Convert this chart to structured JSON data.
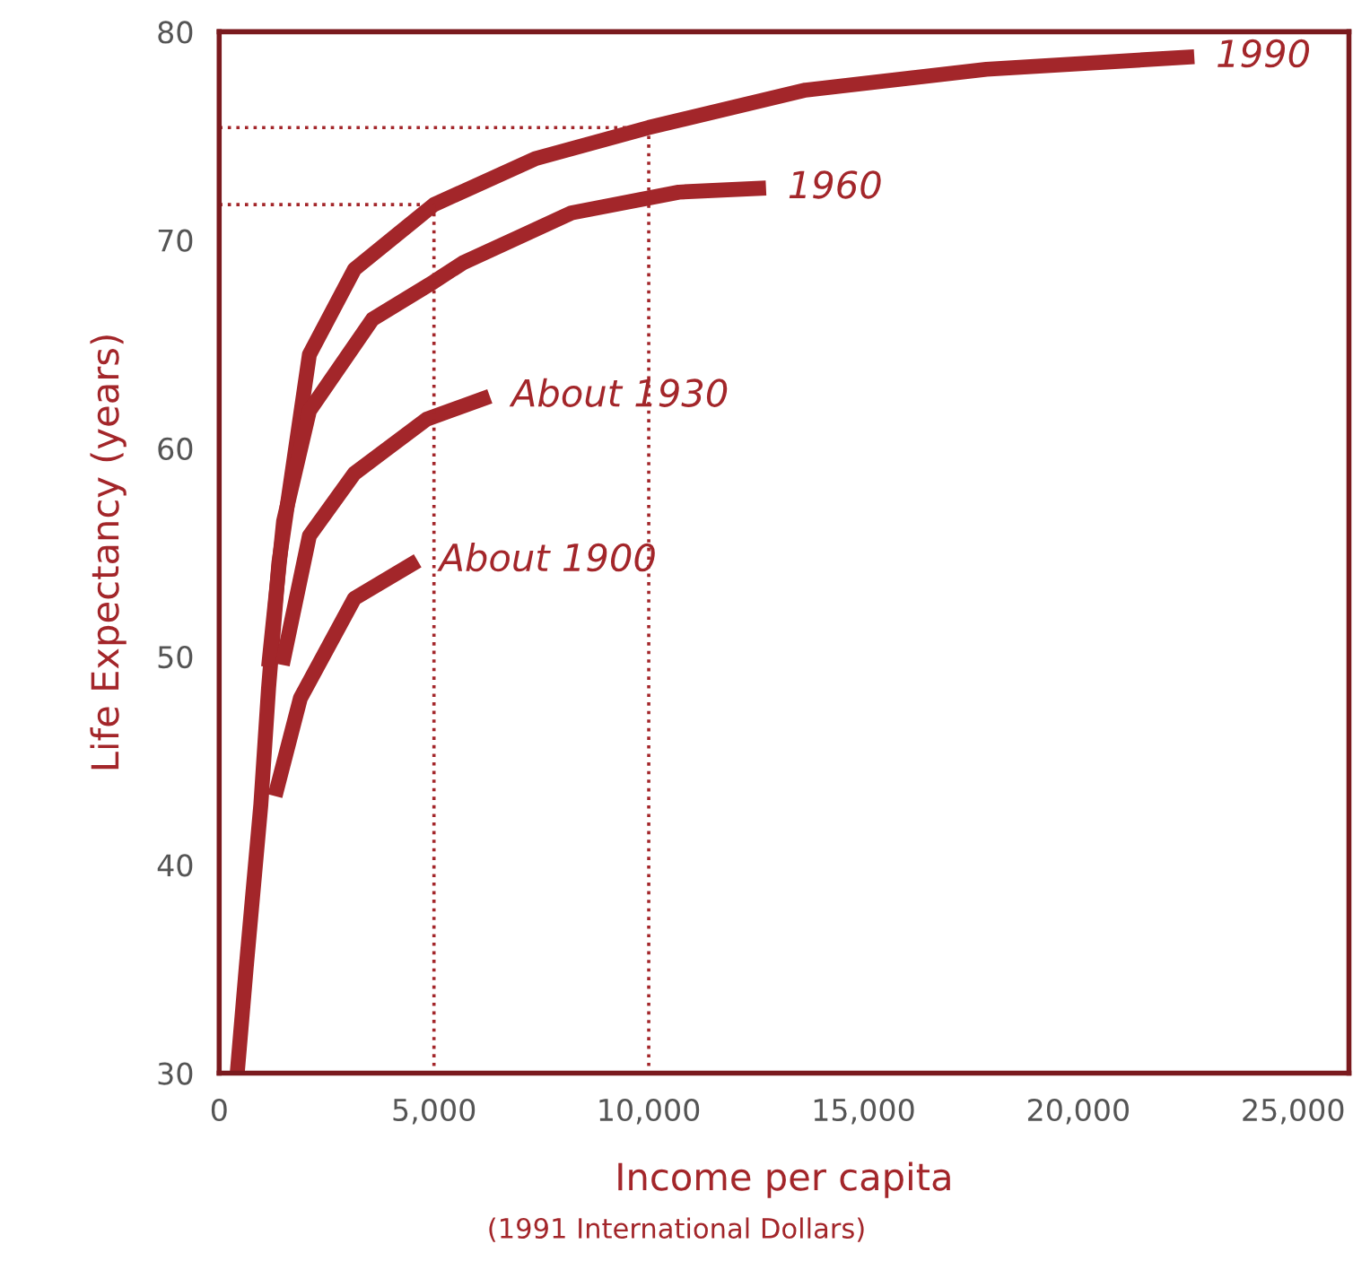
{
  "chart_data": {
    "type": "line",
    "xlabel": "Income per capita",
    "ylabel": "Life Expectancy (years)",
    "annotations": [
      "(1991 International Dollars)"
    ],
    "xlim": [
      0,
      26300
    ],
    "ylim": [
      30,
      80
    ],
    "xticks": [
      0,
      {
        "value": 5000,
        "label": "5,000"
      },
      {
        "value": 10000,
        "label": "10,000"
      },
      {
        "value": 15000,
        "label": "15,000"
      },
      {
        "value": 20000,
        "label": "20,000"
      },
      {
        "value": 25000,
        "label": "25,000"
      }
    ],
    "yticks": [
      30,
      40,
      50,
      60,
      70,
      80
    ],
    "grid": false,
    "legend": false,
    "marker": "none",
    "line_style": "solid",
    "series": [
      {
        "name": "1990",
        "color": "#a3262a",
        "x": [
          420,
          630,
          970,
          1150,
          1390,
          2100,
          3150,
          5000,
          7350,
          10000,
          13650,
          17860,
          22700
        ],
        "values": [
          30,
          35.1,
          42.9,
          48.5,
          54.5,
          64.5,
          68.6,
          71.7,
          73.9,
          75.4,
          77.2,
          78.2,
          78.8
        ]
      },
      {
        "name": "1960",
        "color": "#a3262a",
        "x": [
          1150,
          1500,
          2100,
          3570,
          5000,
          5670,
          8200,
          10700,
          12730
        ],
        "values": [
          49.5,
          56.5,
          61.8,
          66.2,
          68.0,
          68.9,
          71.3,
          72.3,
          72.5
        ]
      },
      {
        "name": "About 1930",
        "color": "#a3262a",
        "x": [
          1470,
          2100,
          3150,
          4830,
          6300
        ],
        "values": [
          49.6,
          55.8,
          58.8,
          61.4,
          62.5
        ]
      },
      {
        "name": "About 1900",
        "color": "#a3262a",
        "x": [
          1300,
          1890,
          3150,
          4620
        ],
        "values": [
          43.3,
          48.0,
          52.8,
          54.6
        ]
      },
      {
        "color": "#a3262a",
        "line_style": "dotted",
        "x": [
          0,
          5000,
          5000
        ],
        "values": [
          71.7,
          71.7,
          30
        ]
      },
      {
        "color": "#a3262a",
        "line_style": "dotted",
        "x": [
          0,
          10000,
          10000
        ],
        "values": [
          75.4,
          75.4,
          30
        ]
      }
    ]
  }
}
